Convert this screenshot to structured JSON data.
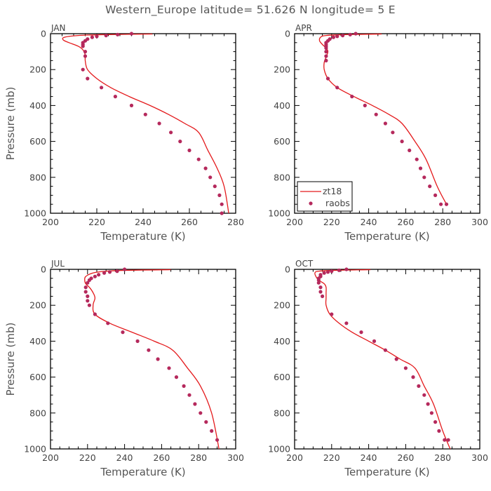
{
  "title": "Western_Europe  latitude= 51.626 N longitude= 5 E",
  "legend": {
    "model_label": "zt18",
    "obs_label": "raobs"
  },
  "colors": {
    "model": "#e41a1c",
    "obs": "#b5295c",
    "text": "#444444",
    "axis": "#000000"
  },
  "chart_data": [
    {
      "type": "line",
      "panel": "JAN",
      "xlabel": "Temperature (K)",
      "ylabel": "Pressure (mb)",
      "xlim": [
        200,
        280
      ],
      "ylim": [
        1000,
        0
      ],
      "xticks": [
        "200",
        "220",
        "240",
        "260",
        "280"
      ],
      "yticks": [
        "0",
        "200",
        "400",
        "600",
        "800",
        "1000"
      ],
      "series": [
        {
          "name": "zt18",
          "kind": "line",
          "x": [
            244,
            225,
            212,
            206,
            205.5,
            208,
            212,
            214,
            215,
            215,
            216,
            220,
            226,
            234,
            243,
            251,
            258,
            264,
            268,
            272,
            275,
            277
          ],
          "y": [
            2,
            5,
            10,
            20,
            35,
            50,
            70,
            90,
            120,
            150,
            200,
            250,
            300,
            350,
            400,
            450,
            500,
            550,
            650,
            750,
            850,
            1000
          ]
        },
        {
          "name": "raobs",
          "kind": "scatter",
          "x": [
            235,
            229,
            224,
            220,
            218,
            216,
            215,
            214,
            214,
            214,
            215,
            215,
            214,
            216,
            222,
            228,
            235,
            241,
            247,
            252,
            256,
            260,
            264,
            267,
            269,
            271,
            273,
            274,
            274
          ],
          "y": [
            0,
            5,
            10,
            15,
            20,
            30,
            40,
            50,
            60,
            70,
            100,
            125,
            200,
            250,
            300,
            350,
            400,
            450,
            500,
            550,
            600,
            650,
            700,
            750,
            800,
            850,
            900,
            950,
            1000
          ]
        }
      ]
    },
    {
      "type": "line",
      "panel": "APR",
      "xlabel": "Temperature (K)",
      "ylabel": "",
      "xlim": [
        200,
        300
      ],
      "ylim": [
        1000,
        0
      ],
      "xticks": [
        "200",
        "220",
        "240",
        "260",
        "280",
        "300"
      ],
      "yticks": [
        "0",
        "200",
        "400",
        "600",
        "800",
        "1000"
      ],
      "series": [
        {
          "name": "zt18",
          "kind": "line",
          "x": [
            247,
            228,
            217,
            214,
            213.5,
            215,
            217,
            218,
            217,
            216,
            216,
            218,
            223,
            232,
            242,
            251,
            258,
            265,
            271,
            277,
            282
          ],
          "y": [
            2,
            5,
            10,
            20,
            40,
            60,
            80,
            100,
            130,
            160,
            200,
            250,
            300,
            350,
            400,
            450,
            500,
            600,
            700,
            850,
            950
          ]
        },
        {
          "name": "raobs",
          "kind": "scatter",
          "x": [
            233,
            230,
            226,
            223,
            221,
            219,
            218,
            217,
            217,
            217,
            217,
            217,
            217,
            217,
            218,
            223,
            231,
            238,
            244,
            249,
            253,
            258,
            262,
            266,
            268,
            270,
            273,
            276,
            279,
            282
          ],
          "y": [
            0,
            5,
            10,
            15,
            20,
            30,
            40,
            50,
            60,
            70,
            80,
            100,
            125,
            150,
            250,
            300,
            350,
            400,
            450,
            500,
            550,
            600,
            650,
            700,
            750,
            800,
            850,
            900,
            950,
            950
          ]
        }
      ]
    },
    {
      "type": "line",
      "panel": "JUL",
      "xlabel": "Temperature (K)",
      "ylabel": "Pressure (mb)",
      "xlim": [
        200,
        300
      ],
      "ylim": [
        1000,
        0
      ],
      "xticks": [
        "200",
        "220",
        "240",
        "260",
        "280",
        "300"
      ],
      "yticks": [
        "0",
        "200",
        "400",
        "600",
        "800",
        "1000"
      ],
      "series": [
        {
          "name": "zt18",
          "kind": "line",
          "x": [
            265,
            242,
            230,
            223,
            219,
            218.5,
            219,
            221,
            223,
            224,
            223,
            224,
            232,
            244,
            256,
            266,
            274,
            281,
            287,
            291
          ],
          "y": [
            2,
            5,
            10,
            20,
            40,
            60,
            80,
            100,
            130,
            160,
            200,
            250,
            300,
            350,
            400,
            450,
            550,
            650,
            800,
            1000
          ]
        },
        {
          "name": "raobs",
          "kind": "scatter",
          "x": [
            240,
            236,
            232,
            229,
            226,
            224,
            222,
            221,
            220,
            219,
            219,
            220,
            220,
            221,
            224,
            231,
            239,
            247,
            253,
            258,
            264,
            268,
            272,
            275,
            278,
            281,
            284,
            287,
            290
          ],
          "y": [
            0,
            10,
            15,
            20,
            30,
            40,
            50,
            60,
            75,
            100,
            125,
            150,
            175,
            200,
            250,
            300,
            350,
            400,
            450,
            500,
            550,
            600,
            650,
            700,
            750,
            800,
            850,
            900,
            950
          ]
        }
      ]
    },
    {
      "type": "line",
      "panel": "OCT",
      "xlabel": "Temperature (K)",
      "ylabel": "",
      "xlim": [
        200,
        300
      ],
      "ylim": [
        1000,
        0
      ],
      "xticks": [
        "200",
        "220",
        "240",
        "260",
        "280",
        "300"
      ],
      "yticks": [
        "0",
        "200",
        "400",
        "600",
        "800",
        "1000"
      ],
      "series": [
        {
          "name": "zt18",
          "kind": "line",
          "x": [
            241,
            223,
            213,
            211,
            211.5,
            213,
            216,
            217,
            217,
            217,
            217,
            219,
            224,
            231,
            240,
            249,
            257,
            265,
            270,
            275,
            280,
            284
          ],
          "y": [
            2,
            5,
            10,
            20,
            40,
            60,
            80,
            100,
            130,
            160,
            200,
            250,
            300,
            350,
            400,
            450,
            500,
            550,
            650,
            750,
            900,
            1000
          ]
        },
        {
          "name": "raobs",
          "kind": "scatter",
          "x": [
            228,
            224,
            220,
            218,
            216,
            214,
            214,
            213,
            213,
            213,
            214,
            214,
            215,
            220,
            228,
            236,
            243,
            249,
            255,
            260,
            264,
            267,
            270,
            272,
            274,
            276,
            278,
            281,
            283
          ],
          "y": [
            0,
            5,
            10,
            15,
            20,
            30,
            40,
            50,
            60,
            75,
            100,
            125,
            150,
            250,
            300,
            350,
            400,
            450,
            500,
            550,
            600,
            650,
            700,
            750,
            800,
            850,
            900,
            950,
            950
          ]
        }
      ]
    }
  ]
}
